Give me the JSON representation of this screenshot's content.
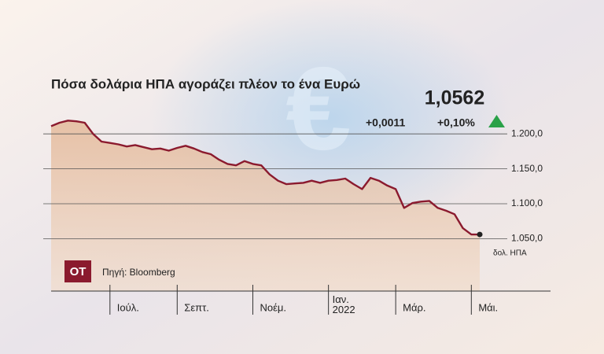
{
  "chart_data": {
    "type": "line",
    "title": "Πόσα δολάρια ΗΠΑ αγοράζει πλέον το ένα Ευρώ",
    "last_value": "1,0562",
    "change": "+0,0011",
    "change_pct": "+0,10%",
    "unit_label": "δολ. ΗΠΑ",
    "source": "Πηγή: Bloomberg",
    "logo": "ΟΤ",
    "color": "#8b1a2e",
    "grid": true,
    "categories": [
      null,
      null,
      null,
      null,
      null,
      null,
      null,
      "Ιούλ.",
      null,
      null,
      null,
      null,
      null,
      null,
      null,
      "Σεπτ.",
      null,
      null,
      null,
      null,
      null,
      null,
      null,
      null,
      "Νοέμ.",
      null,
      null,
      null,
      null,
      null,
      null,
      null,
      null,
      "Ιαν. 2022",
      null,
      null,
      null,
      null,
      null,
      null,
      null,
      "Μάρ.",
      null,
      null,
      null,
      null,
      null,
      null,
      null,
      null,
      "Μάι.",
      null
    ],
    "values": [
      1211,
      1216,
      1219,
      1218,
      1216,
      1200,
      1189,
      1187,
      1185,
      1182,
      1184,
      1181,
      1178,
      1179,
      1176,
      1180,
      1183,
      1179,
      1174,
      1171,
      1163,
      1157,
      1155,
      1161,
      1157,
      1155,
      1142,
      1133,
      1128,
      1129,
      1130,
      1133,
      1130,
      1133,
      1134,
      1136,
      1128,
      1121,
      1137,
      1133,
      1126,
      1121,
      1094,
      1101,
      1103,
      1104,
      1094,
      1090,
      1085,
      1065,
      1056,
      1056
    ],
    "ylim": [
      975,
      1225
    ],
    "yticks": [
      {
        "value": 1050,
        "label": "1.050,0"
      },
      {
        "value": 1100,
        "label": "1.100,0"
      },
      {
        "value": 1150,
        "label": "1.150,0"
      },
      {
        "value": 1200,
        "label": "1.200,0"
      }
    ]
  }
}
